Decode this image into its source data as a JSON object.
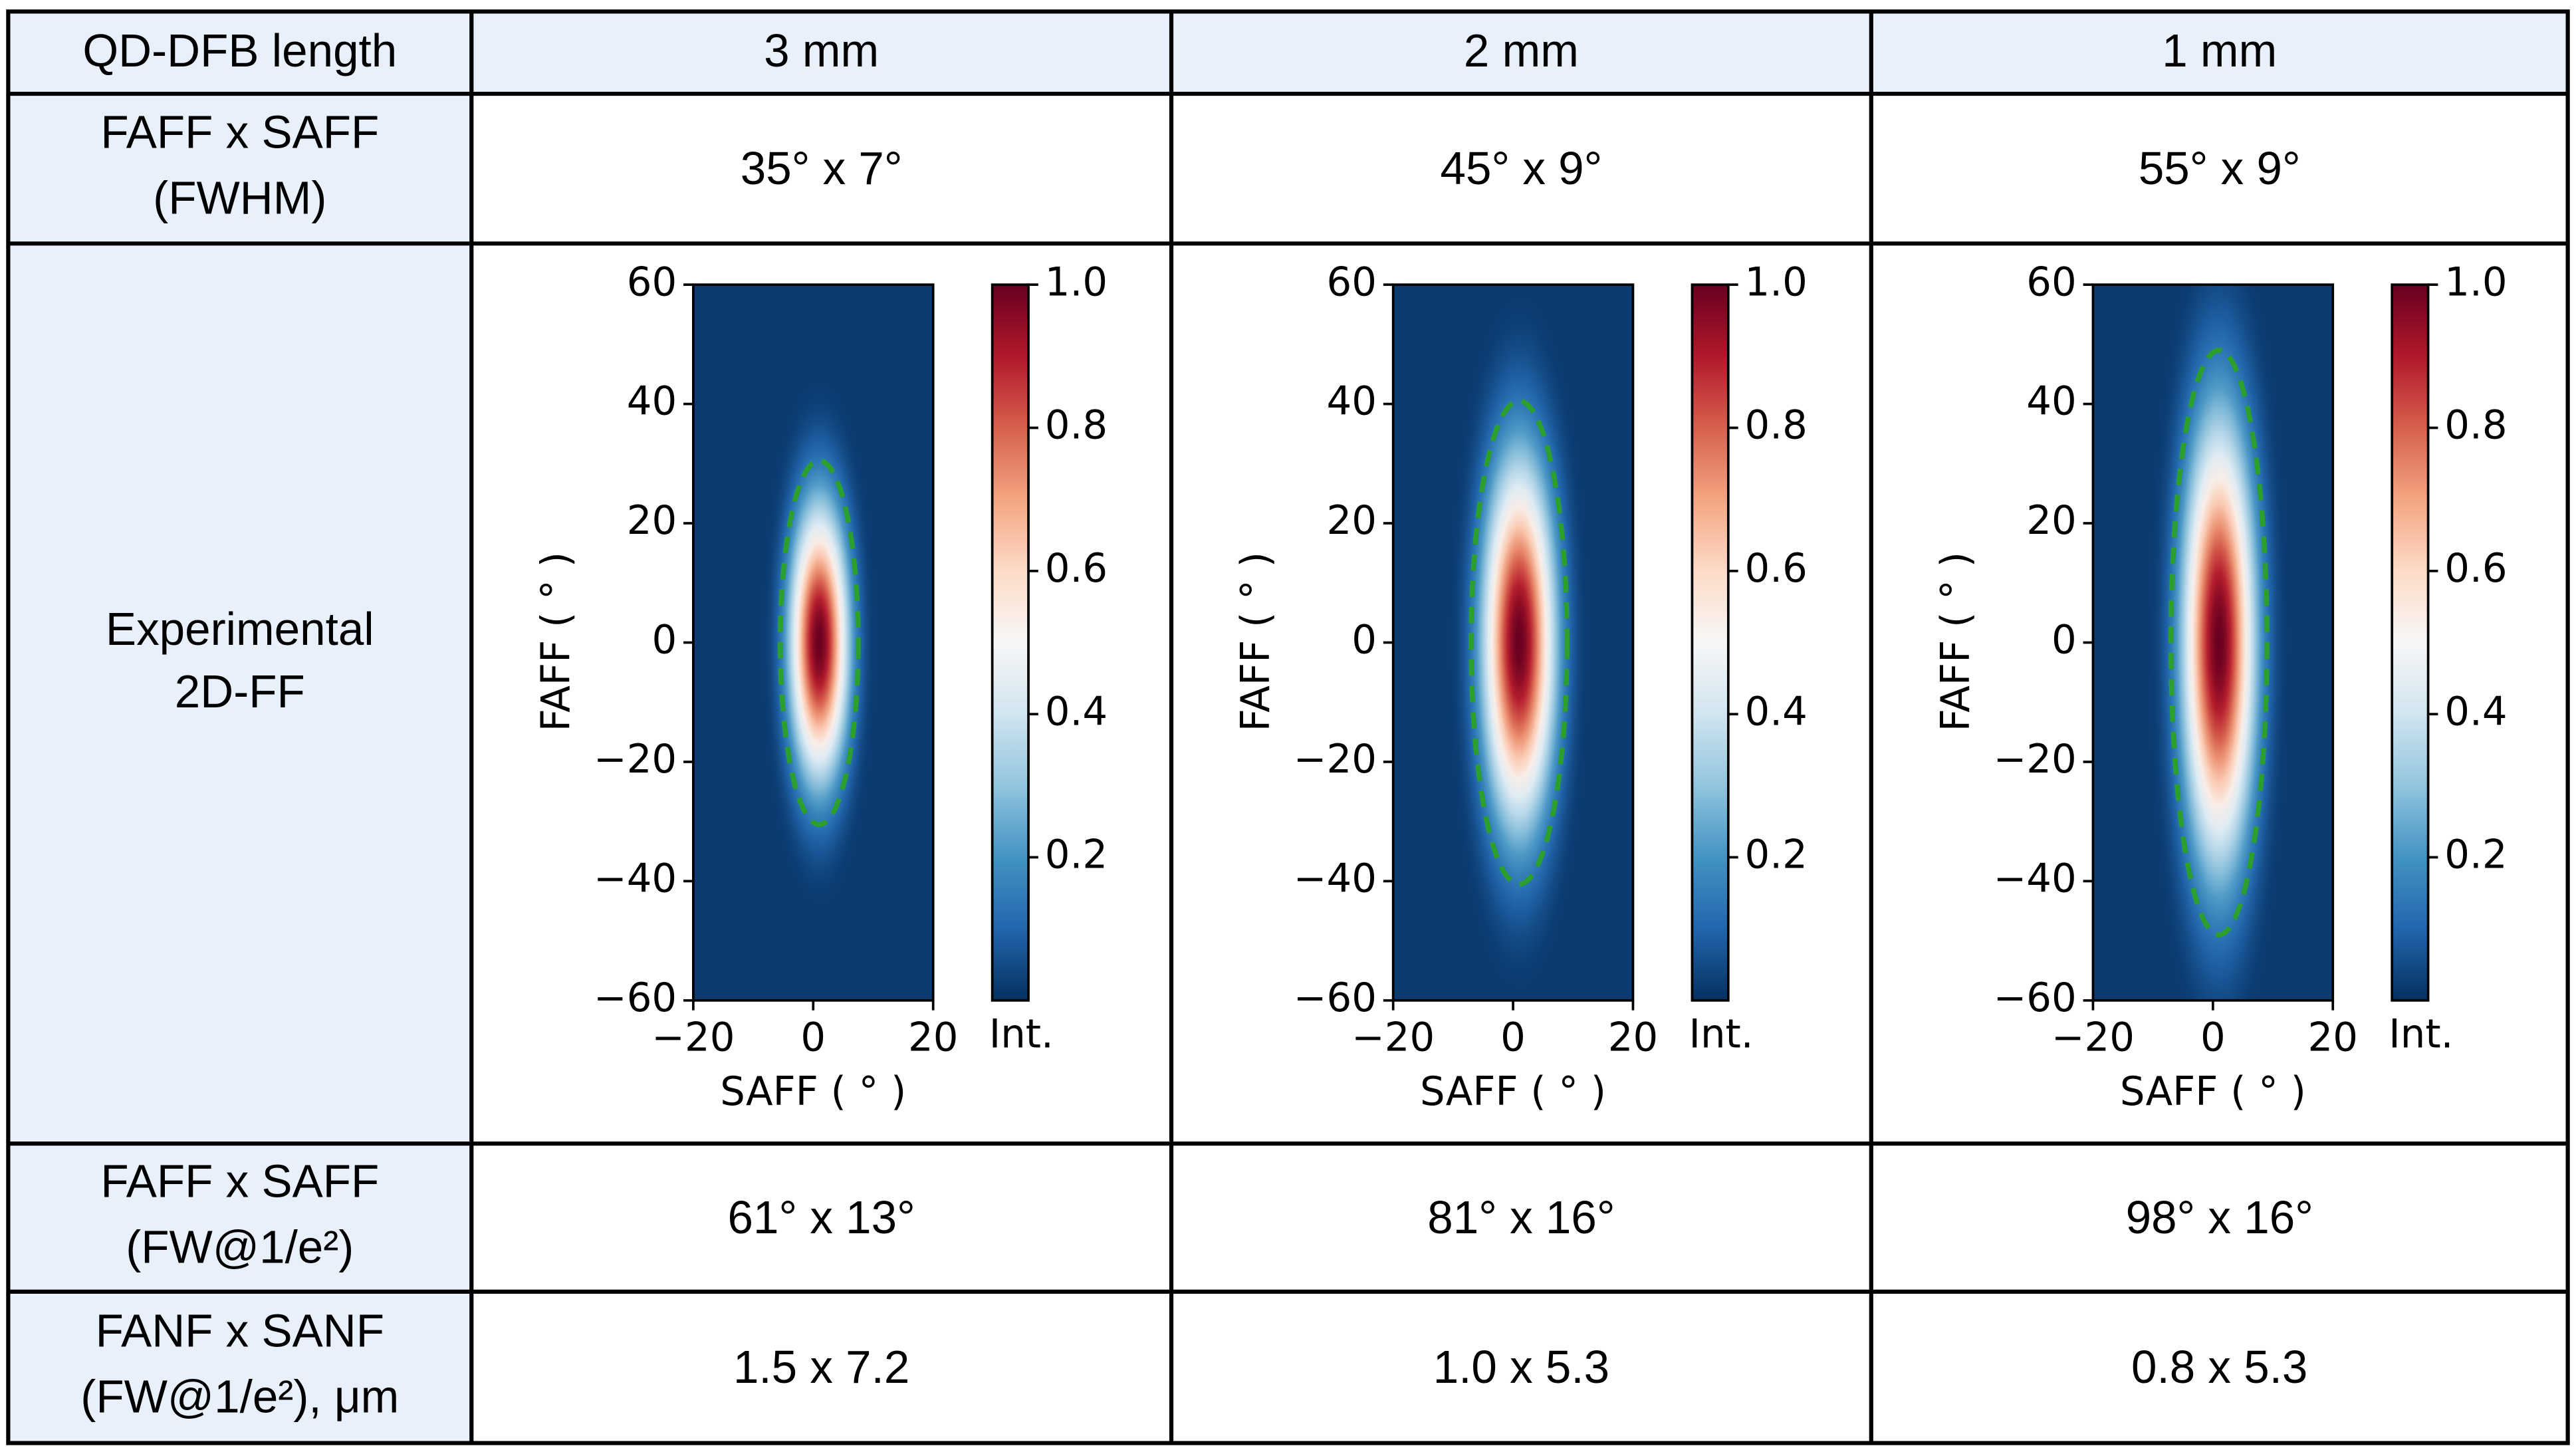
{
  "table": {
    "header": [
      "QD-DFB length",
      "3 mm",
      "2 mm",
      "1 mm"
    ],
    "rows": [
      {
        "label": [
          "FAFF x SAFF",
          "(FWHM)"
        ],
        "cells": [
          "35° x 7°",
          "45° x 9°",
          "55° x 9°"
        ]
      },
      {
        "label": [
          "Experimental",
          "2D-FF"
        ],
        "plots": [
          {
            "xlim": [
              -20,
              20
            ],
            "ylim": [
              -60,
              60
            ],
            "xticks": [
              {
                "value": -20,
                "label": "−20"
              },
              0,
              20
            ],
            "yticks": [
              {
                "value": -60,
                "label": "−60"
              },
              {
                "value": -40,
                "label": "−40"
              },
              {
                "value": -20,
                "label": "−20"
              },
              0,
              20,
              40,
              60
            ],
            "xlabel": "SAFF ( ° )",
            "ylabel": "FAFF ( ° )",
            "colorbar": {
              "lim": [
                0,
                1
              ],
              "ticks": [
                0.2,
                0.4,
                0.6,
                0.8,
                {
                  "value": 1,
                  "label": "1.0"
                }
              ],
              "label": "Int."
            },
            "contour": {
              "width": 13,
              "height": 61
            }
          },
          {
            "xlim": [
              -20,
              20
            ],
            "ylim": [
              -60,
              60
            ],
            "xticks": [
              {
                "value": -20,
                "label": "−20"
              },
              0,
              20
            ],
            "yticks": [
              {
                "value": -60,
                "label": "−60"
              },
              {
                "value": -40,
                "label": "−40"
              },
              {
                "value": -20,
                "label": "−20"
              },
              0,
              20,
              40,
              60
            ],
            "xlabel": "SAFF ( ° )",
            "ylabel": "FAFF ( ° )",
            "colorbar": {
              "lim": [
                0,
                1
              ],
              "ticks": [
                0.2,
                0.4,
                0.6,
                0.8,
                {
                  "value": 1,
                  "label": "1.0"
                }
              ],
              "label": "Int."
            },
            "contour": {
              "width": 16,
              "height": 81
            }
          },
          {
            "xlim": [
              -20,
              20
            ],
            "ylim": [
              -60,
              60
            ],
            "xticks": [
              {
                "value": -20,
                "label": "−20"
              },
              0,
              20
            ],
            "yticks": [
              {
                "value": -60,
                "label": "−60"
              },
              {
                "value": -40,
                "label": "−40"
              },
              {
                "value": -20,
                "label": "−20"
              },
              0,
              20,
              40,
              60
            ],
            "xlabel": "SAFF ( ° )",
            "ylabel": "FAFF ( ° )",
            "colorbar": {
              "lim": [
                0,
                1
              ],
              "ticks": [
                0.2,
                0.4,
                0.6,
                0.8,
                {
                  "value": 1,
                  "label": "1.0"
                }
              ],
              "label": "Int."
            },
            "contour": {
              "width": 16,
              "height": 98
            }
          }
        ]
      },
      {
        "label": [
          "FAFF x SAFF",
          "(FW@1/e²)"
        ],
        "cells": [
          "61° x 13°",
          "81° x 16°",
          "98° x 16°"
        ]
      },
      {
        "label": [
          "FANF x SANF",
          "(FW@1/e²), μm"
        ],
        "cells": [
          "1.5 x 7.2",
          "1.0 x 5.3",
          "0.8 x 5.3"
        ]
      }
    ]
  }
}
